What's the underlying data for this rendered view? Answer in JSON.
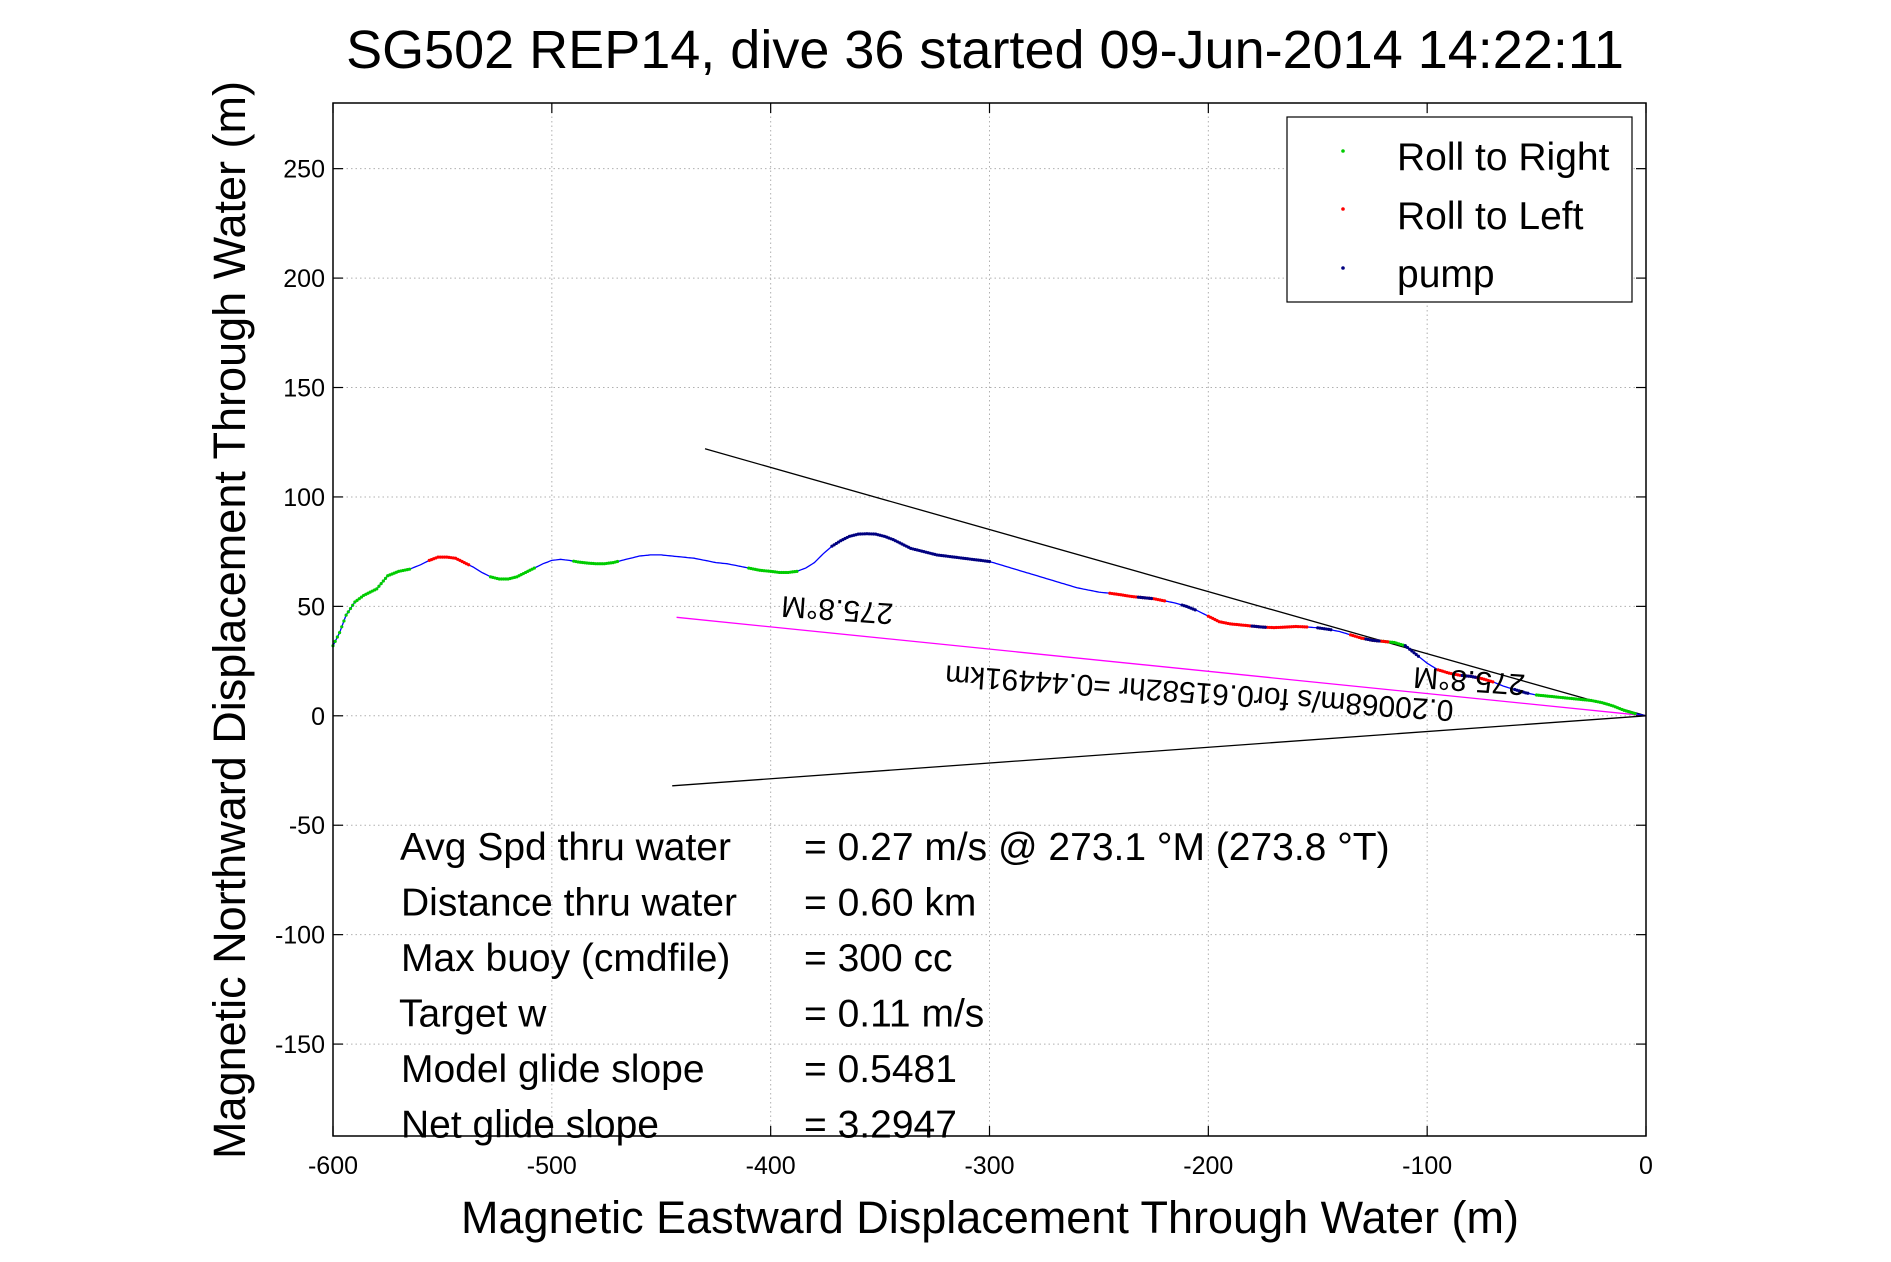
{
  "chart_data": {
    "type": "scatter",
    "title": "SG502 REP14, dive 36 started 09-Jun-2014 14:22:11",
    "xlabel": "Magnetic Eastward Displacement Through Water (m)",
    "ylabel": "Magnetic Northward Displacement Through Water (m)",
    "xlim": [
      -600,
      0
    ],
    "ylim": [
      -192,
      280
    ],
    "grid": true,
    "legend_position": "top-right",
    "x_ticks": [
      -600,
      -500,
      -400,
      -300,
      -200,
      -100,
      0
    ],
    "x_tick_labels": [
      "-600",
      "-500",
      "-400",
      "-300",
      "-200",
      "-100",
      "0"
    ],
    "y_ticks": [
      -150,
      -100,
      -50,
      0,
      50,
      100,
      150,
      200,
      250
    ],
    "y_tick_labels": [
      "-150",
      "-100",
      "-50",
      "0",
      "50",
      "100",
      "150",
      "200",
      "250"
    ],
    "track": {
      "x": [
        -600,
        -597,
        -594,
        -590,
        -586,
        -580,
        -575,
        -570,
        -565,
        -560,
        -556,
        -552,
        -548,
        -544,
        -540,
        -536,
        -532,
        -528,
        -524,
        -520,
        -516,
        -512,
        -508,
        -504,
        -500,
        -496,
        -492,
        -488,
        -484,
        -480,
        -476,
        -472,
        -468,
        -464,
        -460,
        -455,
        -450,
        -445,
        -440,
        -435,
        -430,
        -425,
        -420,
        -415,
        -410,
        -405,
        -400,
        -396,
        -392,
        -388,
        -384,
        -380,
        -376,
        -372,
        -368,
        -364,
        -360,
        -356,
        -352,
        -348,
        -344,
        -340,
        -336,
        -332,
        -328,
        -324,
        -320,
        -316,
        -312,
        -308,
        -304,
        -300,
        -295,
        -290,
        -285,
        -280,
        -275,
        -270,
        -265,
        -260,
        -255,
        -250,
        -245,
        -240,
        -235,
        -230,
        -225,
        -220,
        -215,
        -210,
        -205,
        -200,
        -195,
        -190,
        -185,
        -180,
        -175,
        -170,
        -165,
        -160,
        -155,
        -150,
        -145,
        -140,
        -135,
        -130,
        -125,
        -120,
        -115,
        -110,
        -105,
        -100,
        -95,
        -90,
        -85,
        -80,
        -75,
        -70,
        -65,
        -60,
        -55,
        -50,
        -45,
        -40,
        -35,
        -30,
        -25,
        -20,
        -15,
        -10,
        -5,
        0
      ],
      "y": [
        32,
        38,
        46,
        52,
        55,
        58,
        64,
        66,
        67,
        69,
        71,
        72.5,
        72.5,
        72,
        70,
        68,
        65.5,
        63.5,
        62.5,
        62.5,
        63.5,
        65.5,
        67.5,
        69.5,
        71,
        71.5,
        71,
        70.3,
        69.8,
        69.5,
        69.5,
        70,
        71,
        72,
        73,
        73.5,
        73.5,
        73,
        72.5,
        72,
        71,
        70,
        69.5,
        68.5,
        67.5,
        66.5,
        66,
        65.5,
        65.5,
        66,
        67.5,
        70,
        74,
        77.5,
        80,
        82,
        83,
        83.2,
        83,
        82,
        80.5,
        78.5,
        76.5,
        75.5,
        74.5,
        73.5,
        73,
        72.5,
        72,
        71.5,
        71,
        70.5,
        69,
        67.5,
        66,
        64.5,
        63,
        61.5,
        60,
        58.5,
        57.5,
        56.5,
        56,
        55.3,
        54.5,
        54,
        53.5,
        52.5,
        51.5,
        50,
        48,
        45.5,
        43,
        42,
        41.5,
        41,
        40.5,
        40.3,
        40.5,
        40.8,
        40.6,
        40.2,
        39.5,
        38.5,
        37,
        35.5,
        34.5,
        34,
        33.5,
        32,
        28,
        24,
        21,
        19.5,
        18.5,
        18,
        17,
        15.5,
        13.5,
        12,
        10.5,
        9.5,
        9,
        8.5,
        8,
        7.5,
        7,
        6,
        4.5,
        2.5,
        1,
        0
      ]
    },
    "series": [
      {
        "name": "Roll to Right",
        "color": "#00cc00",
        "ranges": [
          [
            -600,
            -565
          ],
          [
            -528,
            -508
          ],
          [
            -490,
            -470
          ],
          [
            -410,
            -388
          ],
          [
            -130,
            -110
          ],
          [
            -50,
            -5
          ]
        ]
      },
      {
        "name": "Roll to Left",
        "color": "#ff0000",
        "ranges": [
          [
            -556,
            -538
          ],
          [
            -245,
            -220
          ],
          [
            -200,
            -155
          ],
          [
            -135,
            -118
          ],
          [
            -95,
            -70
          ]
        ]
      },
      {
        "name": "pump",
        "color": "#000080",
        "ranges": [
          [
            -372,
            -300
          ],
          [
            -232,
            -226
          ],
          [
            -212,
            -206
          ],
          [
            -180,
            -174
          ],
          [
            -150,
            -144
          ],
          [
            -128,
            -122
          ],
          [
            -110,
            -104
          ],
          [
            -84,
            -78
          ],
          [
            -60,
            -54
          ]
        ]
      }
    ],
    "track_color": "#0000ff",
    "reference_lines": [
      {
        "color": "#000000",
        "x": [
          -430,
          0
        ],
        "y": [
          122,
          0
        ]
      },
      {
        "color": "#000000",
        "x": [
          -445,
          0
        ],
        "y": [
          -32,
          0
        ]
      },
      {
        "color": "#ff00ff",
        "x": [
          -443,
          0
        ],
        "y": [
          45,
          0
        ]
      }
    ],
    "annotations": {
      "heading_upper": "275.8°M",
      "heading_lower": "275.8°M",
      "summary_line": "0.20068m/s for0.61582hr =0.44491km"
    },
    "stats": [
      {
        "label": "Avg Spd thru water",
        "value": "=  0.27 m/s @ 273.1 °M (273.8 °T)"
      },
      {
        "label": "Distance thru water",
        "value": "=  0.60 km"
      },
      {
        "label": "Max buoy (cmdfile)",
        "value": "= 300 cc"
      },
      {
        "label": "Target w",
        "value": "= 0.11 m/s"
      },
      {
        "label": "Model glide slope",
        "value": "= 0.5481"
      },
      {
        "label": "Net glide slope",
        "value": "= 3.2947"
      }
    ]
  }
}
